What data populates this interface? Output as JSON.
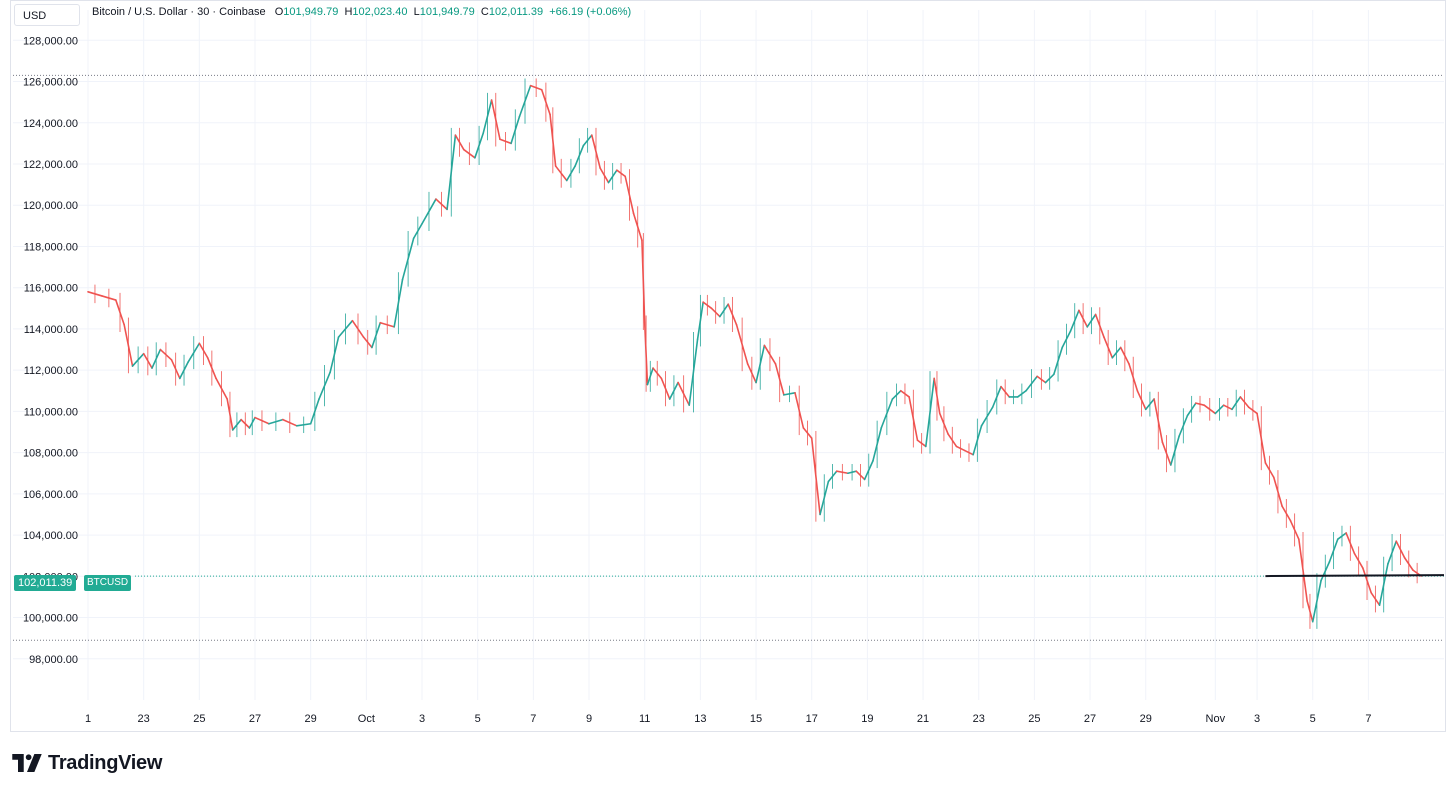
{
  "header": {
    "currency": "USD",
    "symbol_name": "Bitcoin / U.S. Dollar · 30 · Coinbase",
    "ohlc": [
      {
        "k": "O",
        "v": "101,949.79"
      },
      {
        "k": "H",
        "v": "102,023.40"
      },
      {
        "k": "L",
        "v": "101,949.79"
      },
      {
        "k": "C",
        "v": "102,011.39"
      }
    ],
    "change": "+66.19 (+0.06%)"
  },
  "price_tag": {
    "value": "102,011.39",
    "symbol": "BTCUSD"
  },
  "brand": {
    "name": "TradingView"
  },
  "colors": {
    "up": "#26a69a",
    "down": "#ef5350",
    "grid": "#f0f3fa",
    "price_line": "#22ab94",
    "dotted": "#787b86"
  },
  "chart_data": {
    "type": "line",
    "title": "Bitcoin / U.S. Dollar · 30 · Coinbase",
    "xlabel": "",
    "ylabel": "",
    "ylim": [
      96000,
      128500
    ],
    "xlim": [
      0,
      48.5
    ],
    "grid": true,
    "y_ticks": [
      98000,
      100000,
      102000,
      104000,
      106000,
      108000,
      110000,
      112000,
      114000,
      116000,
      118000,
      120000,
      122000,
      124000,
      126000,
      128000
    ],
    "y_tick_labels": [
      "98,000.00",
      "100,000.00",
      "102,000.00",
      "104,000.00",
      "106,000.00",
      "108,000.00",
      "110,000.00",
      "112,000.00",
      "114,000.00",
      "116,000.00",
      "118,000.00",
      "120,000.00",
      "122,000.00",
      "124,000.00",
      "126,000.00",
      "128,000.00"
    ],
    "x_ticks": [
      {
        "x": 0,
        "label": "1"
      },
      {
        "x": 2,
        "label": "23"
      },
      {
        "x": 4,
        "label": "25"
      },
      {
        "x": 6,
        "label": "27"
      },
      {
        "x": 8,
        "label": "29"
      },
      {
        "x": 10,
        "label": "Oct"
      },
      {
        "x": 12,
        "label": "3"
      },
      {
        "x": 14,
        "label": "5"
      },
      {
        "x": 16,
        "label": "7"
      },
      {
        "x": 18,
        "label": "9"
      },
      {
        "x": 20,
        "label": "11"
      },
      {
        "x": 22,
        "label": "13"
      },
      {
        "x": 24,
        "label": "15"
      },
      {
        "x": 26,
        "label": "17"
      },
      {
        "x": 28,
        "label": "19"
      },
      {
        "x": 30,
        "label": "21"
      },
      {
        "x": 32,
        "label": "23"
      },
      {
        "x": 34,
        "label": "25"
      },
      {
        "x": 36,
        "label": "27"
      },
      {
        "x": 38,
        "label": "29"
      },
      {
        "x": 40.5,
        "label": "Nov"
      },
      {
        "x": 42,
        "label": "3"
      },
      {
        "x": 44,
        "label": "5"
      },
      {
        "x": 46,
        "label": "7"
      }
    ],
    "current_price": 102011.39,
    "high_line": 126300,
    "low_line": 98900,
    "horizontal_ray": {
      "x_start": 42.3,
      "price": 102011
    },
    "series": [
      {
        "values": [
          [
            0,
            115800
          ],
          [
            0.5,
            115600
          ],
          [
            1,
            115400
          ],
          [
            1.3,
            114200
          ],
          [
            1.6,
            112200
          ],
          [
            2,
            112800
          ],
          [
            2.3,
            112100
          ],
          [
            2.6,
            113000
          ],
          [
            3,
            112500
          ],
          [
            3.3,
            111600
          ],
          [
            3.6,
            112400
          ],
          [
            4,
            113300
          ],
          [
            4.3,
            112600
          ],
          [
            4.6,
            111600
          ],
          [
            5,
            110600
          ],
          [
            5.2,
            109100
          ],
          [
            5.5,
            109600
          ],
          [
            5.8,
            109200
          ],
          [
            6,
            109700
          ],
          [
            6.5,
            109400
          ],
          [
            7,
            109600
          ],
          [
            7.5,
            109300
          ],
          [
            8,
            109400
          ],
          [
            8.3,
            110600
          ],
          [
            8.7,
            111900
          ],
          [
            9,
            113600
          ],
          [
            9.5,
            114400
          ],
          [
            9.9,
            113600
          ],
          [
            10.2,
            113100
          ],
          [
            10.5,
            114300
          ],
          [
            11,
            114100
          ],
          [
            11.3,
            116400
          ],
          [
            11.7,
            118400
          ],
          [
            12,
            119100
          ],
          [
            12.5,
            120300
          ],
          [
            12.9,
            119800
          ],
          [
            13.2,
            123400
          ],
          [
            13.5,
            122700
          ],
          [
            13.9,
            122300
          ],
          [
            14.2,
            123500
          ],
          [
            14.5,
            125100
          ],
          [
            14.8,
            123200
          ],
          [
            15.2,
            123000
          ],
          [
            15.5,
            124300
          ],
          [
            15.9,
            125800
          ],
          [
            16.3,
            125600
          ],
          [
            16.6,
            124400
          ],
          [
            16.8,
            121900
          ],
          [
            17.2,
            121200
          ],
          [
            17.5,
            121900
          ],
          [
            17.8,
            122900
          ],
          [
            18.1,
            123400
          ],
          [
            18.4,
            121800
          ],
          [
            18.7,
            121100
          ],
          [
            19,
            121700
          ],
          [
            19.3,
            121400
          ],
          [
            19.6,
            119600
          ],
          [
            19.9,
            118300
          ],
          [
            20,
            114300
          ],
          [
            20.1,
            111300
          ],
          [
            20.3,
            112100
          ],
          [
            20.6,
            111600
          ],
          [
            20.9,
            110600
          ],
          [
            21.2,
            111400
          ],
          [
            21.6,
            110300
          ],
          [
            21.9,
            113500
          ],
          [
            22.1,
            115300
          ],
          [
            22.4,
            115000
          ],
          [
            22.7,
            114600
          ],
          [
            23,
            115200
          ],
          [
            23.3,
            114200
          ],
          [
            23.7,
            112300
          ],
          [
            24,
            111400
          ],
          [
            24.3,
            113200
          ],
          [
            24.7,
            112300
          ],
          [
            25,
            110800
          ],
          [
            25.4,
            110900
          ],
          [
            25.7,
            109200
          ],
          [
            26,
            108700
          ],
          [
            26.3,
            105000
          ],
          [
            26.6,
            106600
          ],
          [
            26.9,
            107100
          ],
          [
            27.3,
            107000
          ],
          [
            27.6,
            107100
          ],
          [
            27.9,
            106700
          ],
          [
            28.2,
            107600
          ],
          [
            28.5,
            109200
          ],
          [
            28.9,
            110600
          ],
          [
            29.2,
            111000
          ],
          [
            29.5,
            110700
          ],
          [
            29.8,
            108600
          ],
          [
            30.1,
            108300
          ],
          [
            30.4,
            111600
          ],
          [
            30.6,
            109900
          ],
          [
            30.9,
            108900
          ],
          [
            31.2,
            108300
          ],
          [
            31.5,
            108100
          ],
          [
            31.8,
            107900
          ],
          [
            32.1,
            109300
          ],
          [
            32.5,
            110200
          ],
          [
            32.8,
            111200
          ],
          [
            33.1,
            110700
          ],
          [
            33.4,
            110700
          ],
          [
            33.7,
            111000
          ],
          [
            34.1,
            111700
          ],
          [
            34.4,
            111400
          ],
          [
            34.7,
            111800
          ],
          [
            35,
            113100
          ],
          [
            35.3,
            113900
          ],
          [
            35.6,
            114900
          ],
          [
            35.9,
            114100
          ],
          [
            36.2,
            114700
          ],
          [
            36.5,
            113600
          ],
          [
            36.8,
            112600
          ],
          [
            37.1,
            113100
          ],
          [
            37.4,
            112300
          ],
          [
            37.7,
            111000
          ],
          [
            38,
            110100
          ],
          [
            38.3,
            110600
          ],
          [
            38.6,
            108500
          ],
          [
            38.9,
            107400
          ],
          [
            39.2,
            108800
          ],
          [
            39.5,
            109800
          ],
          [
            39.8,
            110400
          ],
          [
            40.1,
            110300
          ],
          [
            40.5,
            109900
          ],
          [
            40.8,
            110300
          ],
          [
            41.1,
            110100
          ],
          [
            41.4,
            110700
          ],
          [
            41.7,
            110200
          ],
          [
            42,
            109900
          ],
          [
            42.3,
            107500
          ],
          [
            42.6,
            106800
          ],
          [
            42.9,
            105400
          ],
          [
            43.2,
            104700
          ],
          [
            43.5,
            103800
          ],
          [
            43.8,
            100800
          ],
          [
            44,
            99800
          ],
          [
            44.3,
            101800
          ],
          [
            44.6,
            102700
          ],
          [
            44.9,
            103800
          ],
          [
            45.2,
            104100
          ],
          [
            45.5,
            103100
          ],
          [
            45.8,
            102400
          ],
          [
            46.1,
            101200
          ],
          [
            46.4,
            100600
          ],
          [
            46.7,
            102600
          ],
          [
            47,
            103700
          ],
          [
            47.3,
            102900
          ],
          [
            47.6,
            102300
          ],
          [
            47.9,
            102011
          ]
        ]
      }
    ]
  }
}
